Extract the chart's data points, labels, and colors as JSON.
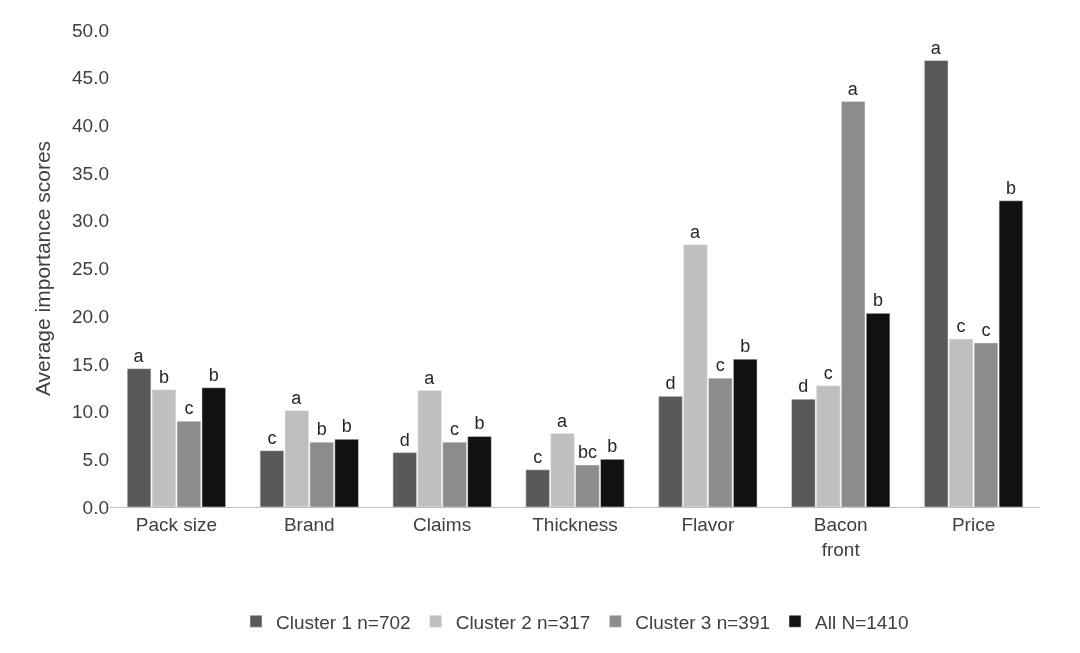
{
  "chart_data": {
    "type": "bar",
    "ylabel": "Average importance scores",
    "categories": [
      "Pack size",
      "Brand",
      "Claims",
      "Thickness",
      "Flavor",
      "Bacon front",
      "Price"
    ],
    "series": [
      {
        "name": "Cluster 1 n=702",
        "color": "#595959",
        "values": [
          14.5,
          5.9,
          5.7,
          3.9,
          11.6,
          11.3,
          46.8
        ],
        "value_labels": [
          "a",
          "c",
          "d",
          "c",
          "d",
          "d",
          "a"
        ]
      },
      {
        "name": "Cluster 2 n=317",
        "color": "#bfbfbf",
        "values": [
          12.3,
          10.1,
          12.2,
          7.7,
          27.5,
          12.7,
          17.6
        ],
        "value_labels": [
          "b",
          "a",
          "a",
          "a",
          "a",
          "c",
          "c"
        ]
      },
      {
        "name": "Cluster 3 n=391",
        "color": "#8c8c8c",
        "values": [
          9.0,
          6.8,
          6.8,
          4.4,
          13.5,
          42.5,
          17.2
        ],
        "value_labels": [
          "c",
          "b",
          "c",
          "bc",
          "c",
          "a",
          "c"
        ]
      },
      {
        "name": "All N=1410",
        "color": "#111111",
        "values": [
          12.5,
          7.1,
          7.4,
          5.0,
          15.5,
          20.3,
          32.1
        ],
        "value_labels": [
          "b",
          "b",
          "b",
          "b",
          "b",
          "b",
          "b"
        ]
      }
    ],
    "ylim": [
      0,
      50
    ],
    "yticks": [
      {
        "value": 0,
        "label": "0.0"
      },
      {
        "value": 5,
        "label": "5.0"
      },
      {
        "value": 10,
        "label": "10.0"
      },
      {
        "value": 15,
        "label": "15.0"
      },
      {
        "value": 20,
        "label": "20.0"
      },
      {
        "value": 25,
        "label": "25.0"
      },
      {
        "value": 30,
        "label": "30.0"
      },
      {
        "value": 35,
        "label": "35.0"
      },
      {
        "value": 40,
        "label": "40.0"
      },
      {
        "value": 45,
        "label": "45.0"
      },
      {
        "value": 50,
        "label": "50.0"
      }
    ],
    "grid": false,
    "legend": "bottom"
  }
}
